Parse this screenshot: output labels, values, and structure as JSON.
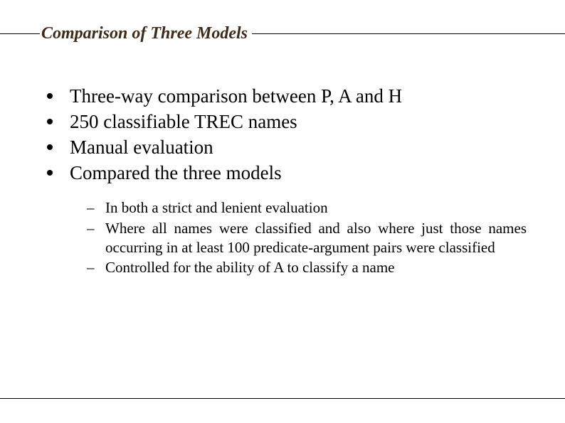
{
  "title": "Comparison of Three Models",
  "bullets": [
    "Three-way comparison between P, A and H",
    "250 classifiable TREC names",
    "Manual evaluation",
    "Compared the three models"
  ],
  "subbullets": [
    "In both a strict and lenient evaluation",
    "Where all names were classified and also where just those names occurring in at least 100 predicate-argument pairs were classified",
    "Controlled for the ability of A to classify a name"
  ],
  "colors": {
    "title_color": "#3f2a1a",
    "line_color": "#000000",
    "text_color": "#000000",
    "background": "#ffffff"
  },
  "typography": {
    "title_fontsize": 24,
    "title_style": "bold italic",
    "bullet_fontsize": 27,
    "subbullet_fontsize": 21,
    "font_family": "Times New Roman"
  }
}
